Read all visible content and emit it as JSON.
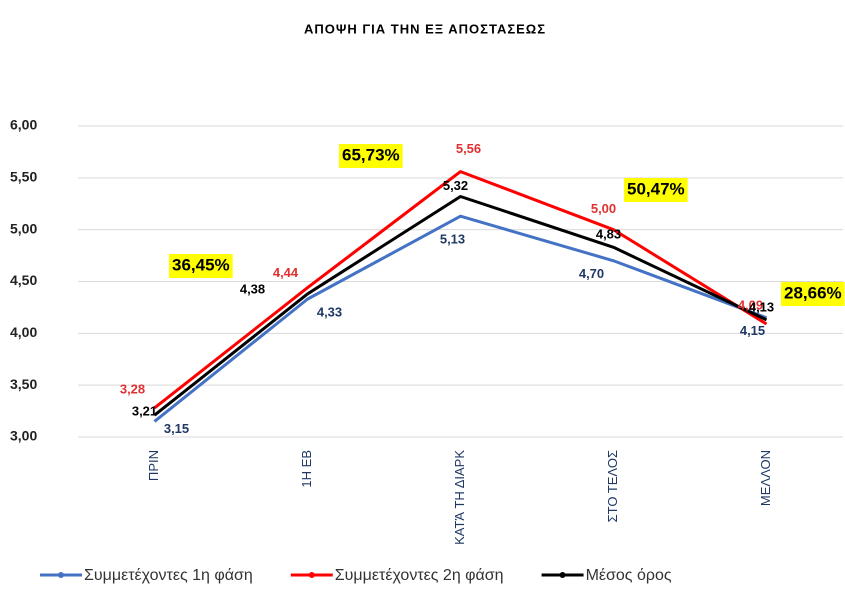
{
  "chart_data": {
    "type": "line",
    "title": "ΑΠΟΨΗ ΓΙΑ ΤΗΝ ΕΞ ΑΠΟΣΤΑΣΕΩΣ",
    "categories": [
      "ΠΡΙΝ",
      "1Η ΕΒ",
      "ΚΑΤΆ ΤΗ ΔΙΑΡΚ",
      "ΣΤΟ ΤΕΛΟΣ",
      "ΜΕΛΛΟΝ"
    ],
    "series": [
      {
        "name": "Συμμετέχοντες 1η φάση",
        "color": "#4472c4",
        "label_color": "#1f3864",
        "values": [
          3.15,
          4.33,
          5.13,
          4.7,
          4.15
        ],
        "value_labels": [
          "3,15",
          "4,33",
          "5,13",
          "4,70",
          "4,15"
        ]
      },
      {
        "name": "Συμμετέχοντες 2η φάση",
        "color": "#ff0000",
        "label_color": "#e03030",
        "values": [
          3.28,
          4.44,
          5.56,
          5.0,
          4.09
        ],
        "value_labels": [
          "3,28",
          "4,44",
          "5,56",
          "5,00",
          "4,09"
        ]
      },
      {
        "name": "Μέσος όρος",
        "color": "#000000",
        "label_color": "#000000",
        "values": [
          3.21,
          4.38,
          5.32,
          4.83,
          4.13
        ],
        "value_labels": [
          "3,21",
          "4,38",
          "5,32",
          "4,83",
          "4,13"
        ]
      }
    ],
    "annotations": [
      "36,45%",
      "65,73%",
      "50,47%",
      "28,66%"
    ],
    "ylim": [
      3,
      6
    ],
    "yticks": [
      {
        "value": 3,
        "label": "3,00"
      },
      {
        "value": 3.5,
        "label": "3,50"
      },
      {
        "value": 4,
        "label": "4,00"
      },
      {
        "value": 4.5,
        "label": "4,50"
      },
      {
        "value": 5,
        "label": "5,00"
      },
      {
        "value": 5.5,
        "label": "5,50"
      },
      {
        "value": 6,
        "label": "6,00"
      }
    ],
    "grid": true
  }
}
